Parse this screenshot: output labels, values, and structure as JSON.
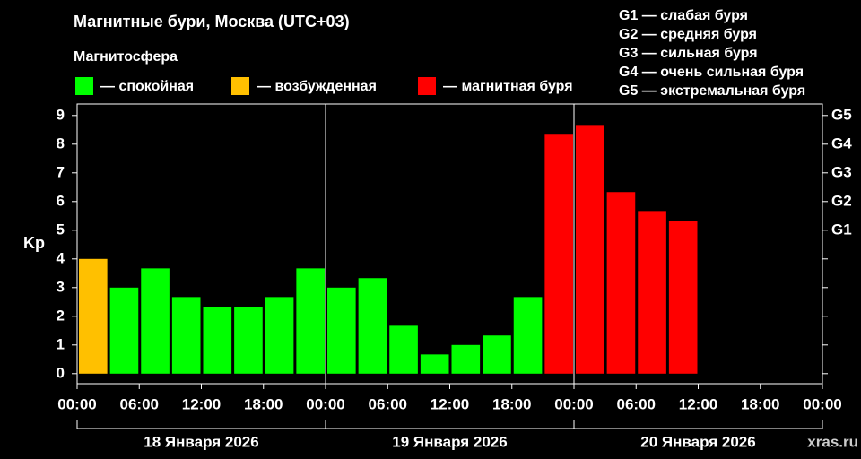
{
  "chart_data": {
    "type": "bar",
    "title": "Магнитные бури, Москва (UTC+03)",
    "legend_title": "Магнитосфера",
    "legend": [
      {
        "label": "— спокойная",
        "color": "#00ff00"
      },
      {
        "label": "— возбужденная",
        "color": "#ffc000"
      },
      {
        "label": "— магнитная буря",
        "color": "#ff0000"
      }
    ],
    "storm_levels": [
      "G1 — слабая буря",
      "G2 — средняя буря",
      "G3 — сильная буря",
      "G4 — очень сильная буря",
      "G5 — экстремальная буря"
    ],
    "y_label": "Kp",
    "x": [
      0,
      3,
      6,
      9,
      12,
      15,
      18,
      21,
      24,
      27,
      30,
      33,
      36,
      39,
      42,
      45,
      48,
      51,
      54,
      57,
      60,
      63,
      66,
      69
    ],
    "values": [
      4.0,
      3.0,
      3.67,
      2.67,
      2.33,
      2.33,
      2.67,
      3.67,
      3.0,
      3.33,
      1.67,
      0.67,
      1.0,
      1.33,
      2.67,
      8.33,
      8.67,
      6.33,
      5.67,
      5.33,
      null,
      null,
      null,
      null
    ],
    "colors": [
      "#ffc000",
      "#00ff00",
      "#00ff00",
      "#00ff00",
      "#00ff00",
      "#00ff00",
      "#00ff00",
      "#00ff00",
      "#00ff00",
      "#00ff00",
      "#00ff00",
      "#00ff00",
      "#00ff00",
      "#00ff00",
      "#00ff00",
      "#ff0000",
      "#ff0000",
      "#ff0000",
      "#ff0000",
      "#ff0000",
      null,
      null,
      null,
      null
    ],
    "xlim": [
      0,
      72
    ],
    "xticks": [
      {
        "value": 0,
        "label": "00:00"
      },
      {
        "value": 6,
        "label": "06:00"
      },
      {
        "value": 12,
        "label": "12:00"
      },
      {
        "value": 18,
        "label": "18:00"
      },
      {
        "value": 24,
        "label": "00:00"
      },
      {
        "value": 30,
        "label": "06:00"
      },
      {
        "value": 36,
        "label": "12:00"
      },
      {
        "value": 42,
        "label": "18:00"
      },
      {
        "value": 48,
        "label": "00:00"
      },
      {
        "value": 54,
        "label": "06:00"
      },
      {
        "value": 60,
        "label": "12:00"
      },
      {
        "value": 66,
        "label": "18:00"
      },
      {
        "value": 72,
        "label": "00:00"
      }
    ],
    "ylim": [
      -0.35,
      9.4
    ],
    "yticks": [
      0,
      1,
      2,
      3,
      4,
      5,
      6,
      7,
      8,
      9
    ],
    "y2ticks": [
      {
        "value": 5,
        "label": "G1"
      },
      {
        "value": 6,
        "label": "G2"
      },
      {
        "value": 7,
        "label": "G3"
      },
      {
        "value": 8,
        "label": "G4"
      },
      {
        "value": 9,
        "label": "G5"
      }
    ],
    "days": [
      "18 Января 2026",
      "19 Января 2026",
      "20 Января 2026"
    ],
    "day_bounds": [
      0,
      24,
      48,
      72
    ],
    "watermark": "xras.ru"
  }
}
